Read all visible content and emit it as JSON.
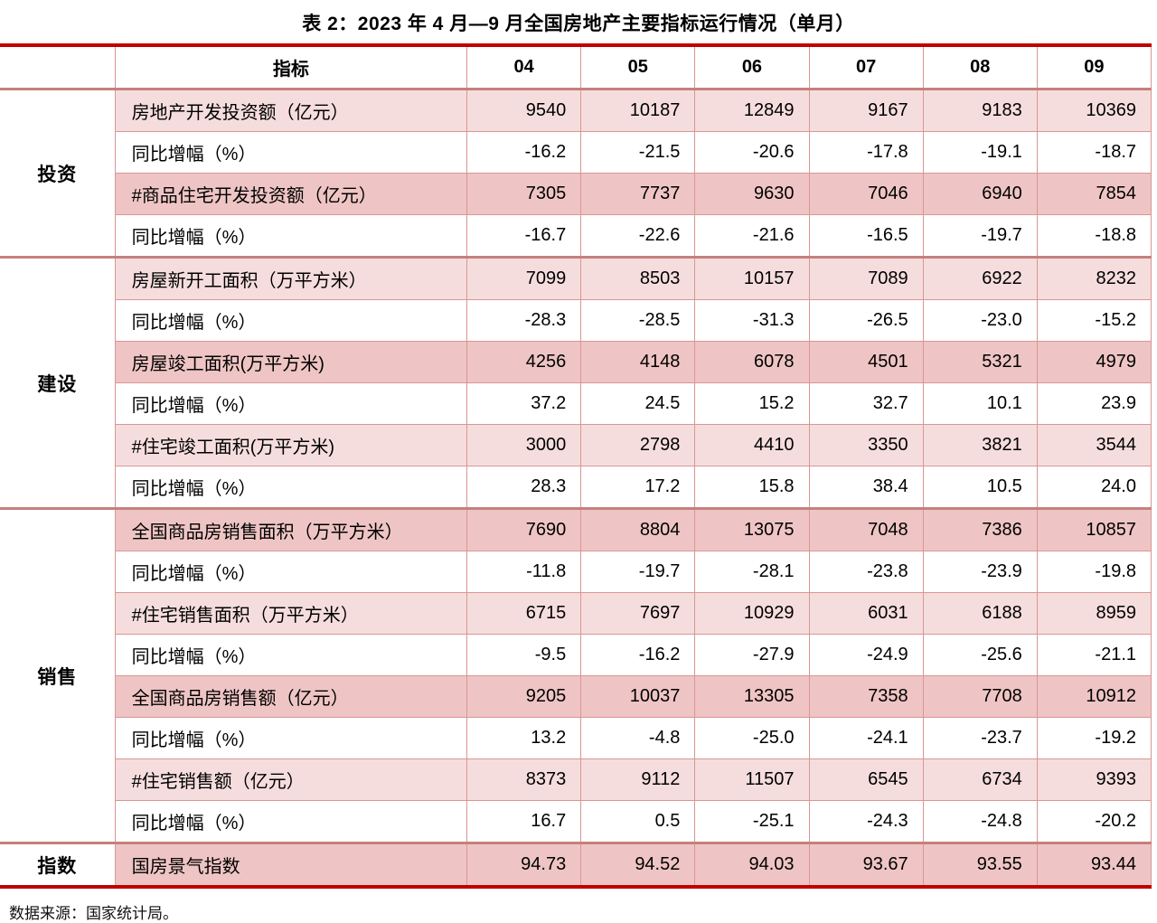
{
  "title": "表 2：2023 年 4 月—9 月全国房地产主要指标运行情况（单月）",
  "source_note": "数据来源：国家统计局。",
  "colors": {
    "rule_red": "#c00000",
    "cell_border": "#d99694",
    "group_divider": "#c5807e",
    "row_light": "#f6dddd",
    "row_dark": "#eec5c4",
    "text": "#000000"
  },
  "table": {
    "header": {
      "indicator_label": "指标",
      "months": [
        "04",
        "05",
        "06",
        "07",
        "08",
        "09"
      ]
    },
    "groups": [
      {
        "label": "投资",
        "rows": [
          {
            "indicator": "房地产开发投资额（亿元）",
            "shade": "light",
            "values": [
              "9540",
              "10187",
              "12849",
              "9167",
              "9183",
              "10369"
            ]
          },
          {
            "indicator": "同比增幅（%）",
            "shade": "white",
            "values": [
              "-16.2",
              "-21.5",
              "-20.6",
              "-17.8",
              "-19.1",
              "-18.7"
            ]
          },
          {
            "indicator": "#商品住宅开发投资额（亿元）",
            "shade": "dark",
            "values": [
              "7305",
              "7737",
              "9630",
              "7046",
              "6940",
              "7854"
            ]
          },
          {
            "indicator": "同比增幅（%）",
            "shade": "white",
            "values": [
              "-16.7",
              "-22.6",
              "-21.6",
              "-16.5",
              "-19.7",
              "-18.8"
            ]
          }
        ]
      },
      {
        "label": "建设",
        "rows": [
          {
            "indicator": "房屋新开工面积（万平方米）",
            "shade": "light",
            "values": [
              "7099",
              "8503",
              "10157",
              "7089",
              "6922",
              "8232"
            ]
          },
          {
            "indicator": "同比增幅（%）",
            "shade": "white",
            "values": [
              "-28.3",
              "-28.5",
              "-31.3",
              "-26.5",
              "-23.0",
              "-15.2"
            ]
          },
          {
            "indicator": "房屋竣工面积(万平方米)",
            "shade": "dark",
            "values": [
              "4256",
              "4148",
              "6078",
              "4501",
              "5321",
              "4979"
            ]
          },
          {
            "indicator": "同比增幅（%）",
            "shade": "white",
            "values": [
              "37.2",
              "24.5",
              "15.2",
              "32.7",
              "10.1",
              "23.9"
            ]
          },
          {
            "indicator": "#住宅竣工面积(万平方米)",
            "shade": "light",
            "values": [
              "3000",
              "2798",
              "4410",
              "3350",
              "3821",
              "3544"
            ]
          },
          {
            "indicator": "同比增幅（%）",
            "shade": "white",
            "values": [
              "28.3",
              "17.2",
              "15.8",
              "38.4",
              "10.5",
              "24.0"
            ]
          }
        ]
      },
      {
        "label": "销售",
        "rows": [
          {
            "indicator": "全国商品房销售面积（万平方米）",
            "shade": "dark",
            "values": [
              "7690",
              "8804",
              "13075",
              "7048",
              "7386",
              "10857"
            ]
          },
          {
            "indicator": "同比增幅（%）",
            "shade": "white",
            "values": [
              "-11.8",
              "-19.7",
              "-28.1",
              "-23.8",
              "-23.9",
              "-19.8"
            ]
          },
          {
            "indicator": "#住宅销售面积（万平方米）",
            "shade": "light",
            "values": [
              "6715",
              "7697",
              "10929",
              "6031",
              "6188",
              "8959"
            ]
          },
          {
            "indicator": "同比增幅（%）",
            "shade": "white",
            "values": [
              "-9.5",
              "-16.2",
              "-27.9",
              "-24.9",
              "-25.6",
              "-21.1"
            ]
          },
          {
            "indicator": "全国商品房销售额（亿元）",
            "shade": "dark",
            "values": [
              "9205",
              "10037",
              "13305",
              "7358",
              "7708",
              "10912"
            ]
          },
          {
            "indicator": "同比增幅（%）",
            "shade": "white",
            "values": [
              "13.2",
              "-4.8",
              "-25.0",
              "-24.1",
              "-23.7",
              "-19.2"
            ]
          },
          {
            "indicator": "#住宅销售额（亿元）",
            "shade": "light",
            "values": [
              "8373",
              "9112",
              "11507",
              "6545",
              "6734",
              "9393"
            ]
          },
          {
            "indicator": "同比增幅（%）",
            "shade": "white",
            "values": [
              "16.7",
              "0.5",
              "-25.1",
              "-24.3",
              "-24.8",
              "-20.2"
            ]
          }
        ]
      },
      {
        "label": "指数",
        "rows": [
          {
            "indicator": "国房景气指数",
            "shade": "dark",
            "values": [
              "94.73",
              "94.52",
              "94.03",
              "93.67",
              "93.55",
              "93.44"
            ]
          }
        ]
      }
    ]
  }
}
